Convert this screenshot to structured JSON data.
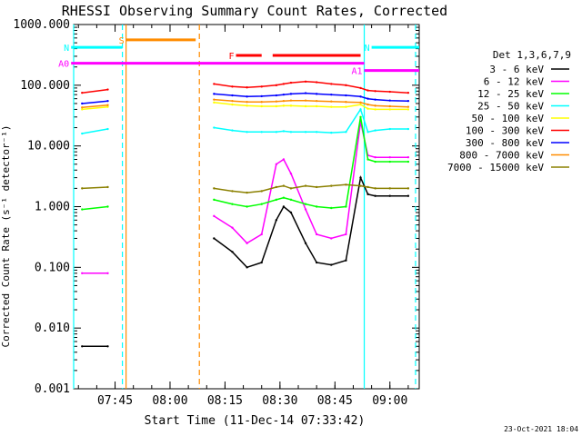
{
  "chart_data": {
    "type": "line",
    "title": "RHESSI Observing Summary Count Rates, Corrected",
    "xlabel": "Start Time (11-Dec-14 07:33:42)",
    "ylabel": "Corrected Count Rate (s⁻¹ detector⁻¹)",
    "xlim": [
      "07:33:42",
      "09:08:00"
    ],
    "ylim": [
      0.001,
      1000
    ],
    "yscale": "log",
    "x_ticks": [
      "07:45",
      "08:00",
      "08:15",
      "08:30",
      "08:45",
      "09:00"
    ],
    "y_ticks": [
      "0.001",
      "0.010",
      "0.100",
      "1.000",
      "10.000",
      "100.000",
      "1000.000"
    ],
    "legend_title": "Det 1,3,6,7,9",
    "legend_position": "right",
    "series": [
      {
        "name": "3 - 6 keV",
        "color": "#000000",
        "x": [
          "07:36",
          "07:43",
          "08:12",
          "08:17",
          "08:21",
          "08:25",
          "08:29",
          "08:31",
          "08:33",
          "08:37",
          "08:40",
          "08:44",
          "08:48",
          "08:52",
          "08:54",
          "08:56",
          "09:00",
          "09:05"
        ],
        "y": [
          0.005,
          0.005,
          0.3,
          0.18,
          0.1,
          0.12,
          0.6,
          1.0,
          0.8,
          0.25,
          0.12,
          0.11,
          0.13,
          3.0,
          1.6,
          1.5,
          1.5,
          1.5
        ]
      },
      {
        "name": "6 - 12 keV",
        "color": "#ff00ff",
        "x": [
          "07:36",
          "07:43",
          "08:12",
          "08:17",
          "08:21",
          "08:25",
          "08:29",
          "08:31",
          "08:33",
          "08:37",
          "08:40",
          "08:44",
          "08:48",
          "08:52",
          "08:54",
          "08:56",
          "09:00",
          "09:05"
        ],
        "y": [
          0.08,
          0.08,
          0.7,
          0.45,
          0.25,
          0.35,
          5.0,
          6.0,
          3.5,
          0.9,
          0.35,
          0.3,
          0.35,
          25,
          7,
          6.5,
          6.5,
          6.5
        ]
      },
      {
        "name": "12 - 25 keV",
        "color": "#00ff00",
        "x": [
          "07:36",
          "07:43",
          "08:12",
          "08:17",
          "08:21",
          "08:25",
          "08:29",
          "08:31",
          "08:33",
          "08:37",
          "08:40",
          "08:44",
          "08:48",
          "08:52",
          "08:54",
          "08:56",
          "09:00",
          "09:05"
        ],
        "y": [
          0.9,
          1.0,
          1.3,
          1.1,
          1.0,
          1.1,
          1.3,
          1.4,
          1.3,
          1.1,
          1.0,
          0.95,
          1.0,
          30,
          6,
          5.5,
          5.5,
          5.5
        ]
      },
      {
        "name": "25 - 50 keV",
        "color": "#00ffff",
        "x": [
          "07:36",
          "07:43",
          "08:12",
          "08:17",
          "08:21",
          "08:25",
          "08:29",
          "08:31",
          "08:33",
          "08:37",
          "08:40",
          "08:44",
          "08:48",
          "08:52",
          "08:54",
          "08:56",
          "09:00",
          "09:05"
        ],
        "y": [
          16,
          19,
          20,
          18,
          17,
          17,
          17,
          17.5,
          17,
          17,
          17,
          16.5,
          17,
          40,
          17,
          18,
          19,
          19
        ]
      },
      {
        "name": "50 - 100 keV",
        "color": "#ffff00",
        "x": [
          "07:36",
          "07:43",
          "08:12",
          "08:17",
          "08:21",
          "08:25",
          "08:29",
          "08:31",
          "08:33",
          "08:37",
          "08:40",
          "08:44",
          "08:48",
          "08:52",
          "08:54",
          "08:56",
          "09:00",
          "09:05"
        ],
        "y": [
          40,
          44,
          52,
          48,
          46,
          45,
          45,
          46,
          46,
          45,
          45,
          44,
          44,
          48,
          41,
          40,
          40,
          40
        ]
      },
      {
        "name": "100 - 300 keV",
        "color": "#ff0000",
        "x": [
          "07:36",
          "07:43",
          "08:12",
          "08:17",
          "08:21",
          "08:25",
          "08:29",
          "08:31",
          "08:33",
          "08:37",
          "08:40",
          "08:44",
          "08:48",
          "08:52",
          "08:54",
          "08:56",
          "09:00",
          "09:05"
        ],
        "y": [
          75,
          85,
          105,
          95,
          92,
          95,
          100,
          105,
          110,
          115,
          112,
          105,
          100,
          90,
          82,
          80,
          78,
          75
        ]
      },
      {
        "name": "300 - 800 keV",
        "color": "#0000ff",
        "x": [
          "07:36",
          "07:43",
          "08:12",
          "08:17",
          "08:21",
          "08:25",
          "08:29",
          "08:31",
          "08:33",
          "08:37",
          "08:40",
          "08:44",
          "08:48",
          "08:52",
          "08:54",
          "08:56",
          "09:00",
          "09:05"
        ],
        "y": [
          50,
          55,
          72,
          68,
          65,
          66,
          68,
          70,
          72,
          74,
          72,
          70,
          68,
          65,
          60,
          58,
          56,
          55
        ]
      },
      {
        "name": "800 - 7000 keV",
        "color": "#ff8c00",
        "x": [
          "07:36",
          "07:43",
          "08:12",
          "08:17",
          "08:21",
          "08:25",
          "08:29",
          "08:31",
          "08:33",
          "08:37",
          "08:40",
          "08:44",
          "08:48",
          "08:52",
          "08:54",
          "08:56",
          "09:00",
          "09:05"
        ],
        "y": [
          43,
          47,
          58,
          55,
          53,
          53,
          54,
          55,
          56,
          56,
          55,
          54,
          53,
          52,
          48,
          46,
          45,
          44
        ]
      },
      {
        "name": "7000 - 15000 keV",
        "color": "#8b8000",
        "x": [
          "07:36",
          "07:43",
          "08:12",
          "08:17",
          "08:21",
          "08:25",
          "08:29",
          "08:31",
          "08:33",
          "08:37",
          "08:40",
          "08:44",
          "08:48",
          "08:52",
          "08:54",
          "08:56",
          "09:00",
          "09:05"
        ],
        "y": [
          2.0,
          2.1,
          2.0,
          1.8,
          1.7,
          1.8,
          2.1,
          2.2,
          2.0,
          2.2,
          2.1,
          2.2,
          2.3,
          2.2,
          2.1,
          2.0,
          2.0,
          2.0
        ]
      }
    ],
    "flag_bars": [
      {
        "label": "S",
        "color": "#ff8c00",
        "x_start": "07:48",
        "x_end": "08:07",
        "level": 560
      },
      {
        "label": "N",
        "color": "#00ffff",
        "x_start": "07:33",
        "x_end": "07:47",
        "level": 420
      },
      {
        "label": "N",
        "color": "#00ffff",
        "x_start": "08:55",
        "x_end": "09:08",
        "level": 420
      },
      {
        "label": "F",
        "color": "#ff0000",
        "x_start": "08:18",
        "x_end": "08:25",
        "level": 310
      },
      {
        "label": "",
        "color": "#ff0000",
        "x_start": "08:28",
        "x_end": "08:52",
        "level": 310
      },
      {
        "label": "A0",
        "color": "#ff00ff",
        "x_start": "07:33",
        "x_end": "08:53",
        "level": 230
      },
      {
        "label": "A1",
        "color": "#ff00ff",
        "x_start": "08:53",
        "x_end": "09:08",
        "level": 175
      }
    ],
    "vertical_markers": [
      {
        "x": "07:33:42",
        "color": "#00ffff",
        "style": "solid"
      },
      {
        "x": "07:47",
        "color": "#00ffff",
        "style": "dashed"
      },
      {
        "x": "07:48",
        "color": "#ff8c00",
        "style": "solid"
      },
      {
        "x": "08:08",
        "color": "#ff8c00",
        "style": "dashed"
      },
      {
        "x": "08:53",
        "color": "#00ffff",
        "style": "solid"
      },
      {
        "x": "09:07",
        "color": "#00ffff",
        "style": "dashed"
      }
    ]
  },
  "footer": {
    "timestamp": "23-Oct-2021 18:04"
  }
}
